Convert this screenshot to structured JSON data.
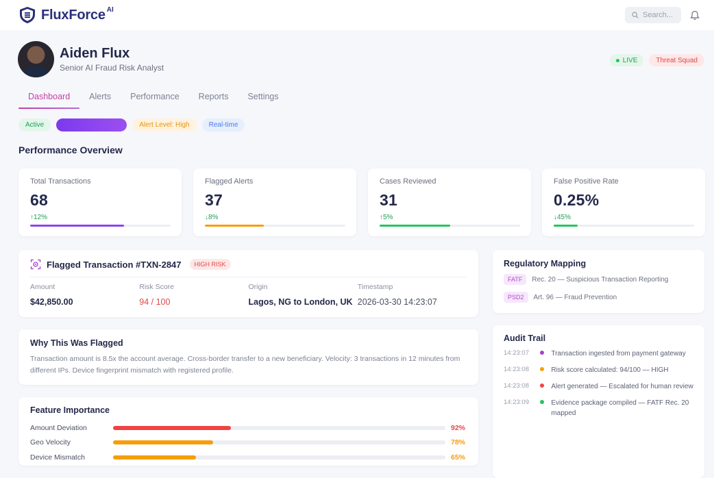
{
  "app": {
    "brand": "FluxForce",
    "brand_sup": "AI",
    "search_placeholder": "Search...",
    "accent": "#c43fa3"
  },
  "profile": {
    "name": "Aiden Flux",
    "role": "Senior AI Fraud Risk Analyst",
    "live_label": "LIVE",
    "squad_label": "Threat Squad"
  },
  "tabs": [
    {
      "label": "Dashboard",
      "active": true
    },
    {
      "label": "Alerts",
      "active": false
    },
    {
      "label": "Performance",
      "active": false
    },
    {
      "label": "Reports",
      "active": false
    },
    {
      "label": "Settings",
      "active": false
    }
  ],
  "chips": {
    "active": "Active",
    "alert_level": "Alert Level: High",
    "realtime": "Real-time"
  },
  "overview": {
    "title": "Performance Overview",
    "stats": [
      {
        "label": "Total Transactions",
        "value": "68",
        "delta": "↑12%",
        "delta_dir": "up",
        "progress": 0.67,
        "color": "#8b45ee"
      },
      {
        "label": "Flagged Alerts",
        "value": "37",
        "delta": "↓8%",
        "delta_dir": "down",
        "progress": 0.42,
        "color": "#f59e0b"
      },
      {
        "label": "Cases Reviewed",
        "value": "31",
        "delta": "↑5%",
        "delta_dir": "up",
        "progress": 0.5,
        "color": "#22c55e"
      },
      {
        "label": "False Positive Rate",
        "value": "0.25%",
        "delta": "↓45%",
        "delta_dir": "down",
        "progress": 0.17,
        "color": "#22c55e"
      }
    ]
  },
  "transaction": {
    "title": "Flagged Transaction #TXN-2847",
    "risk_badge": "HIGH RISK",
    "fields": [
      {
        "label": "Amount",
        "value": "$42,850.00"
      },
      {
        "label": "Risk Score",
        "value": "94 / 100"
      },
      {
        "label": "Origin",
        "value": "Lagos, NG to London, UK"
      },
      {
        "label": "Timestamp",
        "value": "2026-03-30 14:23:07"
      }
    ]
  },
  "why": {
    "title": "Why This Was Flagged",
    "text": "Transaction amount is 8.5x the account average. Cross-border transfer to a new beneficiary. Velocity: 3 transactions in 12 minutes from different IPs. Device fingerprint mismatch with registered profile."
  },
  "features": {
    "title": "Feature Importance",
    "items": [
      {
        "label": "Amount Deviation",
        "pct": "92%",
        "value": 0.92,
        "color": "#ef4444"
      },
      {
        "label": "Geo Velocity",
        "pct": "78%",
        "value": 0.78,
        "color": "#f59e0b"
      },
      {
        "label": "Device Mismatch",
        "pct": "65%",
        "value": 0.65,
        "color": "#f59e0b"
      }
    ]
  },
  "regulatory": {
    "title": "Regulatory Mapping",
    "items": [
      {
        "tag": "FATF",
        "text": "Rec. 20 — Suspicious Transaction Reporting"
      },
      {
        "tag": "PSD2",
        "text": "Art. 96 — Fraud Prevention"
      }
    ]
  },
  "audit": {
    "title": "Audit Trail",
    "items": [
      {
        "time": "14:23:07",
        "text": "Transaction ingested from payment gateway",
        "color": "#a83fd6"
      },
      {
        "time": "14:23:08",
        "text": "Risk score calculated: 94/100 — HIGH",
        "color": "#f59e0b"
      },
      {
        "time": "14:23:08",
        "text": "Alert generated — Escalated for human review",
        "color": "#ef4444"
      },
      {
        "time": "14:23:09",
        "text": "Evidence package compiled — FATF Rec. 20 mapped",
        "color": "#22c55e"
      }
    ]
  }
}
